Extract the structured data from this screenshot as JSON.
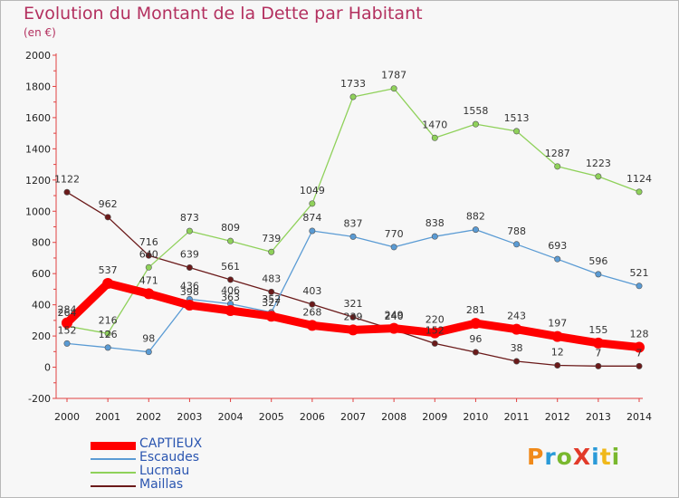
{
  "chart_data": {
    "type": "line",
    "title": "Evolution du Montant de la Dette par Habitant",
    "subtitle": "(en €)",
    "x": [
      "2000",
      "2001",
      "2002",
      "2003",
      "2004",
      "2005",
      "2006",
      "2007",
      "2008",
      "2009",
      "2010",
      "2011",
      "2012",
      "2013",
      "2014"
    ],
    "ylim": [
      -200,
      2000
    ],
    "yticks": [
      -200,
      0,
      200,
      400,
      600,
      800,
      1000,
      1200,
      1400,
      1600,
      1800,
      2000
    ],
    "grid": false,
    "legend_position": "bottom-left",
    "series": [
      {
        "name": "Maillas",
        "color": "#6b1a1a",
        "values": [
          1122,
          962,
          716,
          639,
          561,
          483,
          403,
          321,
          240,
          152,
          96,
          38,
          12,
          7,
          7
        ]
      },
      {
        "name": "Escaudes",
        "color": "#5a9bd4",
        "values": [
          152,
          126,
          98,
          436,
          406,
          352,
          874,
          837,
          770,
          838,
          882,
          788,
          693,
          596,
          521
        ]
      },
      {
        "name": "Lucmau",
        "color": "#8fd15a",
        "values": [
          264,
          216,
          640,
          873,
          809,
          739,
          1049,
          1733,
          1787,
          1470,
          1558,
          1513,
          1287,
          1223,
          1124
        ]
      },
      {
        "name": "CAPTIEUX",
        "color": "#ff0000",
        "values": [
          284,
          537,
          471,
          398,
          363,
          327,
          268,
          239,
          249,
          220,
          281,
          243,
          197,
          155,
          128
        ]
      }
    ]
  },
  "legend": [
    {
      "name": "CAPTIEUX",
      "color": "#ff0000"
    },
    {
      "name": "Escaudes",
      "color": "#5a9bd4"
    },
    {
      "name": "Lucmau",
      "color": "#8fd15a"
    },
    {
      "name": "Maillas",
      "color": "#6b1a1a"
    }
  ],
  "logo": {
    "text": "ProXiti",
    "colors": [
      "#f08a1a",
      "#2a9ad8",
      "#79b82e",
      "#e23a2a",
      "#2a9ad8",
      "#f0b81a",
      "#79b82e"
    ]
  }
}
